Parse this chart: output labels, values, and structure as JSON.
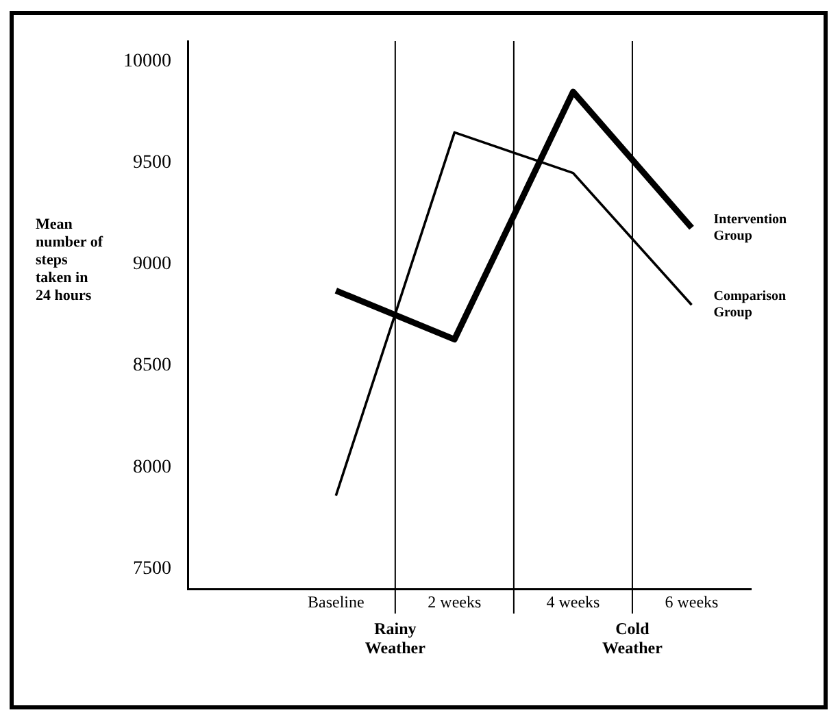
{
  "chart_data": {
    "type": "line",
    "ylabel": "Mean number of steps taken in 24 hours",
    "x": [
      0,
      2,
      4,
      6
    ],
    "xlim": [
      -2.5,
      7
    ],
    "xticks": [
      {
        "value": 0,
        "label": "Baseline"
      },
      {
        "value": 2,
        "label": "2 weeks"
      },
      {
        "value": 4,
        "label": "4 weeks"
      },
      {
        "value": 6,
        "label": "6 weeks"
      }
    ],
    "ylim": [
      7400,
      10100
    ],
    "yticks": [
      7500,
      8000,
      8500,
      9000,
      9500,
      10000
    ],
    "grid": false,
    "legend": false,
    "marker": "none",
    "line_style": "solid",
    "series": [
      {
        "name": "Intervention Group",
        "color": "#000000",
        "values": [
          8870,
          8630,
          9850,
          9180
        ]
      },
      {
        "name": "Comparison Group",
        "color": "#000000",
        "values": [
          7860,
          9650,
          9450,
          8800
        ]
      }
    ],
    "ref_lines": [
      {
        "axis": "x",
        "value": 1,
        "label": "Rainy Weather",
        "color": "#000000"
      },
      {
        "axis": "x",
        "value": 3,
        "label": null,
        "color": "#000000"
      },
      {
        "axis": "x",
        "value": 5,
        "label": "Cold Weather",
        "color": "#000000"
      }
    ]
  }
}
